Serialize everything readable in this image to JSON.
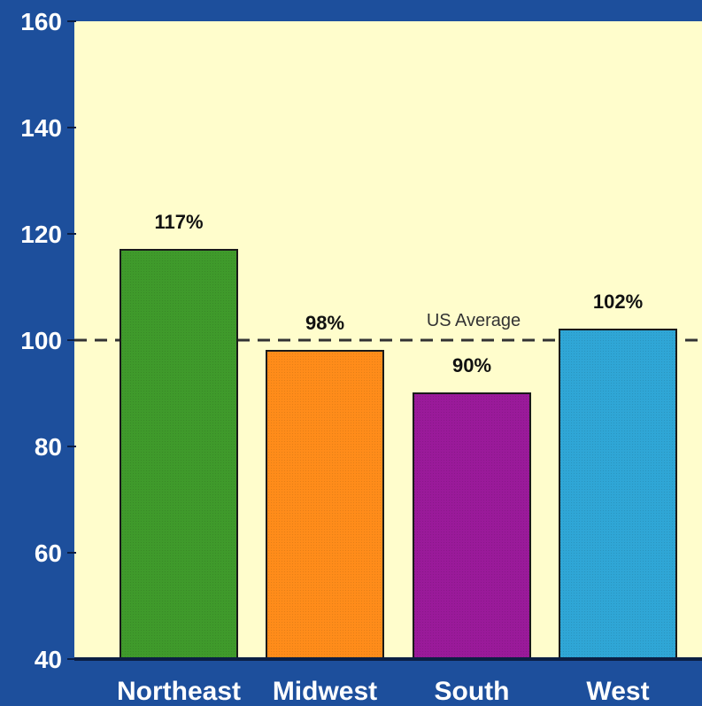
{
  "colors": {
    "outer_background": "#1d4f9c",
    "plot_background": "#fffdcc",
    "axis_text": "#ffffff",
    "label_text": "#111111",
    "reference_line": "#333333",
    "bar_outline": "#1a1a1a"
  },
  "chart_data": {
    "type": "bar",
    "title": "",
    "xlabel": "",
    "ylabel": "",
    "categories": [
      "Northeast",
      "Midwest",
      "South",
      "West"
    ],
    "values": [
      117,
      98,
      90,
      102
    ],
    "value_labels": [
      "117%",
      "98%",
      "90%",
      "102%"
    ],
    "bar_colors": [
      "#3f9a2b",
      "#ff8c1a",
      "#9a1a9a",
      "#2fa6d6"
    ],
    "ylim": [
      40,
      160
    ],
    "yticks": [
      40,
      60,
      80,
      100,
      120,
      140,
      160
    ],
    "grid": false,
    "reference_line": {
      "value": 100,
      "label": "US Average",
      "style": "dashed"
    }
  }
}
